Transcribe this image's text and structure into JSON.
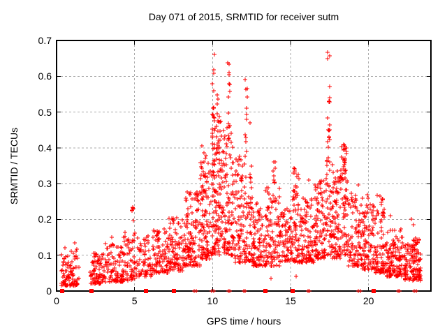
{
  "chart_data": {
    "type": "scatter",
    "title": "Day 071 of 2015, SRMTID for receiver sutm",
    "xlabel": "GPS time / hours",
    "ylabel": "SRMTID / TECUs",
    "xlim": [
      0,
      24
    ],
    "ylim": [
      0,
      0.7
    ],
    "xtick_values": [
      0,
      5,
      10,
      15,
      20
    ],
    "xtick_labels": [
      "0",
      "5",
      "10",
      "15",
      "20"
    ],
    "ytick_values": [
      0,
      0.1,
      0.2,
      0.3,
      0.4,
      0.5,
      0.6,
      0.7
    ],
    "ytick_labels": [
      "0",
      "0.1",
      "0.2",
      "0.3",
      "0.4",
      "0.5",
      "0.6",
      "0.7"
    ],
    "grid": true,
    "legend": "none",
    "marker": {
      "shape": "plus",
      "color": "#ff0000",
      "size": 7
    },
    "grid_color": "#a8a8a8",
    "border_color": "#000000",
    "background": "#ffffff",
    "baseline_square_markers_x_hours": [
      0.35,
      2.25,
      5.75,
      7.5,
      13.4,
      15.15,
      20.35
    ],
    "baseline_plus_markers_x_hours": [
      8.82,
      8.94,
      9.95,
      10.07,
      11.0,
      11.12,
      11.98,
      12.1,
      16.1,
      16.22,
      19.35,
      19.47,
      21.88,
      22.0,
      22.92,
      23.04
    ],
    "density_profile": {
      "note": "estimated from pixels; segments format [x_start,x_end,y_min,y_max,n_points,low_bias_exponent]",
      "segments": [
        [
          0.25,
          1.45,
          0.015,
          0.125,
          95,
          1.7
        ],
        [
          2.15,
          3.1,
          0.02,
          0.105,
          85,
          1.7
        ],
        [
          3.1,
          4.3,
          0.025,
          0.135,
          95,
          1.6
        ],
        [
          4.3,
          5.05,
          0.03,
          0.17,
          60,
          1.5
        ],
        [
          5.1,
          6.2,
          0.04,
          0.15,
          70,
          1.6
        ],
        [
          6.2,
          7.2,
          0.05,
          0.175,
          85,
          1.5
        ],
        [
          7.2,
          8.2,
          0.055,
          0.205,
          95,
          1.5
        ],
        [
          8.2,
          9.2,
          0.07,
          0.28,
          115,
          1.5
        ],
        [
          9.2,
          9.9,
          0.09,
          0.37,
          95,
          1.4
        ],
        [
          9.9,
          10.6,
          0.1,
          0.5,
          130,
          1.3
        ],
        [
          10.6,
          11.4,
          0.1,
          0.46,
          115,
          1.3
        ],
        [
          11.4,
          12.0,
          0.08,
          0.38,
          75,
          1.4
        ],
        [
          12.0,
          12.55,
          0.08,
          0.36,
          65,
          1.4
        ],
        [
          12.55,
          13.35,
          0.07,
          0.25,
          85,
          1.5
        ],
        [
          13.35,
          14.3,
          0.07,
          0.3,
          95,
          1.5
        ],
        [
          14.3,
          15.1,
          0.08,
          0.23,
          75,
          1.5
        ],
        [
          15.1,
          15.6,
          0.08,
          0.34,
          60,
          1.4
        ],
        [
          15.6,
          16.5,
          0.08,
          0.26,
          95,
          1.5
        ],
        [
          16.5,
          17.25,
          0.09,
          0.31,
          95,
          1.4
        ],
        [
          17.25,
          17.7,
          0.1,
          0.45,
          60,
          1.2
        ],
        [
          17.7,
          18.2,
          0.09,
          0.34,
          70,
          1.4
        ],
        [
          18.2,
          18.7,
          0.1,
          0.41,
          70,
          1.3
        ],
        [
          18.7,
          19.6,
          0.07,
          0.3,
          90,
          1.5
        ],
        [
          19.6,
          20.4,
          0.06,
          0.245,
          85,
          1.6
        ],
        [
          20.4,
          21.1,
          0.05,
          0.27,
          85,
          1.6
        ],
        [
          21.1,
          22.3,
          0.04,
          0.175,
          135,
          1.6
        ],
        [
          22.3,
          23.35,
          0.03,
          0.15,
          145,
          1.6
        ]
      ],
      "columns_format": "[x_center, y_min, y_max, n_points]",
      "columns": [
        [
          4.88,
          0.195,
          0.26,
          7
        ],
        [
          8.35,
          0.16,
          0.3,
          8
        ],
        [
          9.5,
          0.2,
          0.43,
          12
        ],
        [
          10.05,
          0.44,
          0.675,
          14
        ],
        [
          10.3,
          0.33,
          0.56,
          10
        ],
        [
          11.05,
          0.42,
          0.645,
          13
        ],
        [
          12.15,
          0.37,
          0.6,
          12
        ],
        [
          13.95,
          0.24,
          0.375,
          12
        ],
        [
          15.3,
          0.22,
          0.385,
          10
        ],
        [
          17.45,
          0.41,
          0.67,
          13
        ],
        [
          18.45,
          0.33,
          0.41,
          10
        ],
        [
          19.9,
          0.17,
          0.29,
          8
        ]
      ],
      "outliers": [
        [
          0.55,
          0.12
        ],
        [
          1.15,
          0.135
        ],
        [
          3.55,
          0.15
        ],
        [
          5.85,
          0.155
        ],
        [
          9.3,
          0.405
        ],
        [
          12.4,
          0.47
        ],
        [
          13.75,
          0.035
        ],
        [
          15.35,
          0.04
        ],
        [
          16.15,
          0.31
        ],
        [
          21.4,
          0.21
        ],
        [
          22.75,
          0.2
        ],
        [
          22.9,
          0.185
        ]
      ],
      "seed": 1337
    }
  }
}
